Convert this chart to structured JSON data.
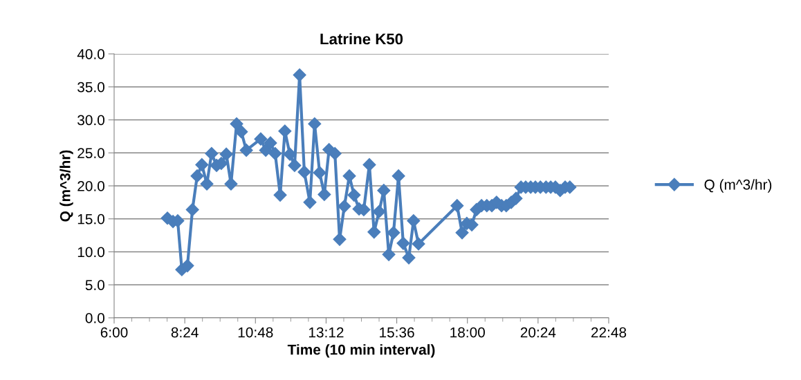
{
  "chart_data": {
    "type": "line",
    "title": "Latrine K50",
    "xlabel": "Time (10 min interval)",
    "ylabel": "Q (m^3/hr)",
    "x": [
      7.81,
      8.0,
      8.16,
      8.3,
      8.49,
      8.66,
      8.82,
      8.98,
      9.15,
      9.31,
      9.48,
      9.64,
      9.81,
      9.97,
      10.16,
      10.32,
      10.49,
      10.98,
      11.15,
      11.31,
      11.47,
      11.64,
      11.8,
      11.97,
      12.13,
      12.3,
      12.46,
      12.65,
      12.81,
      12.98,
      13.14,
      13.3,
      13.5,
      13.66,
      13.82,
      13.99,
      14.15,
      14.32,
      14.48,
      14.67,
      14.83,
      15.0,
      15.16,
      15.33,
      15.49,
      15.66,
      15.82,
      16.01,
      16.17,
      16.34,
      17.65,
      17.82,
      17.98,
      18.15,
      18.31,
      18.48,
      18.66,
      18.83,
      18.99,
      19.16,
      19.32,
      19.49,
      19.65,
      19.82,
      19.98,
      20.15,
      20.31,
      20.48,
      20.67,
      20.83,
      20.99,
      21.15,
      21.32,
      21.48
    ],
    "series": [
      {
        "name": "Q (m^3/hr)",
        "color": "#4a7ebb",
        "values": [
          15.1,
          14.6,
          14.7,
          7.3,
          7.9,
          16.4,
          21.5,
          23.2,
          20.3,
          24.9,
          23.1,
          23.4,
          24.8,
          20.3,
          29.4,
          28.2,
          25.4,
          27.1,
          25.4,
          26.5,
          24.9,
          18.6,
          28.3,
          24.8,
          23.1,
          36.8,
          22.1,
          17.5,
          29.4,
          22.0,
          18.7,
          25.5,
          24.9,
          11.9,
          16.9,
          21.5,
          18.6,
          16.5,
          16.4,
          23.2,
          13.0,
          16.1,
          19.3,
          9.6,
          12.9,
          21.5,
          11.3,
          9.1,
          14.7,
          11.2,
          17.0,
          12.9,
          14.3,
          14.1,
          16.4,
          17.0,
          17.0,
          17.0,
          17.5,
          17.0,
          17.0,
          17.5,
          18.1,
          19.8,
          19.8,
          19.8,
          19.8,
          19.8,
          19.8,
          19.8,
          19.8,
          19.3,
          19.8,
          19.8
        ]
      }
    ],
    "xlim": [
      6.0,
      22.8
    ],
    "xticks": [
      {
        "value": 6.0,
        "label": "6:00"
      },
      {
        "value": 8.4,
        "label": "8:24"
      },
      {
        "value": 10.8,
        "label": "10:48"
      },
      {
        "value": 13.2,
        "label": "13:12"
      },
      {
        "value": 15.6,
        "label": "15:36"
      },
      {
        "value": 18.0,
        "label": "18:00"
      },
      {
        "value": 20.4,
        "label": "20:24"
      },
      {
        "value": 22.8,
        "label": "22:48"
      }
    ],
    "ylim": [
      0,
      40
    ],
    "yticks": [
      {
        "value": 0,
        "label": "0.0"
      },
      {
        "value": 5,
        "label": "5.0"
      },
      {
        "value": 10,
        "label": "10.0"
      },
      {
        "value": 15,
        "label": "15.0"
      },
      {
        "value": 20,
        "label": "20.0"
      },
      {
        "value": 25,
        "label": "25.0"
      },
      {
        "value": 30,
        "label": "30.0"
      },
      {
        "value": 35,
        "label": "35.0"
      },
      {
        "value": 40,
        "label": "40.0"
      }
    ],
    "grid": "y",
    "legend": "right",
    "marker": "diamond",
    "line_style": "solid"
  }
}
